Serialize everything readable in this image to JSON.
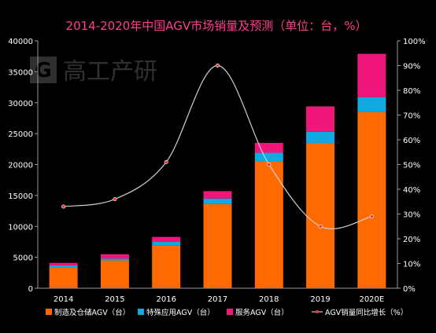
{
  "chart_data": {
    "type": "bar",
    "stacked": true,
    "title": "2014-2020年中国AGV市场销量及预测（单位：台，%）",
    "watermark": "高工产研",
    "categories": [
      "2014",
      "2015",
      "2016",
      "2017",
      "2018",
      "2019",
      "2020E"
    ],
    "series": [
      {
        "name": "制造及仓储AGV（台）",
        "color": "#ff6a00",
        "values": [
          3300,
          4500,
          6900,
          13600,
          20500,
          23500,
          28500
        ]
      },
      {
        "name": "特殊应用AGV（台）",
        "color": "#12a8e0",
        "values": [
          400,
          300,
          600,
          900,
          1400,
          1800,
          2400
        ]
      },
      {
        "name": "服务AGV（台）",
        "color": "#f0167a",
        "values": [
          400,
          700,
          800,
          1200,
          1600,
          4100,
          7000
        ]
      }
    ],
    "line": {
      "name": "AGV销量同比增长（%）",
      "color": "#cfcfcf",
      "marker_color": "#e03a3a",
      "values": [
        33,
        36,
        51,
        90,
        50,
        25,
        29
      ]
    },
    "y_left": {
      "min": 0,
      "max": 40000,
      "ticks": [
        0,
        5000,
        10000,
        15000,
        20000,
        25000,
        30000,
        35000,
        40000
      ]
    },
    "y_right": {
      "min": 0,
      "max": 100,
      "ticks": [
        "0%",
        "10%",
        "20%",
        "30%",
        "40%",
        "50%",
        "60%",
        "70%",
        "80%",
        "90%",
        "100%"
      ]
    },
    "legend_position": "bottom",
    "colors": {
      "background": "#000000",
      "title": "#ff3f8e",
      "text": "#ffffff",
      "axis": "#9a9a9a"
    }
  }
}
